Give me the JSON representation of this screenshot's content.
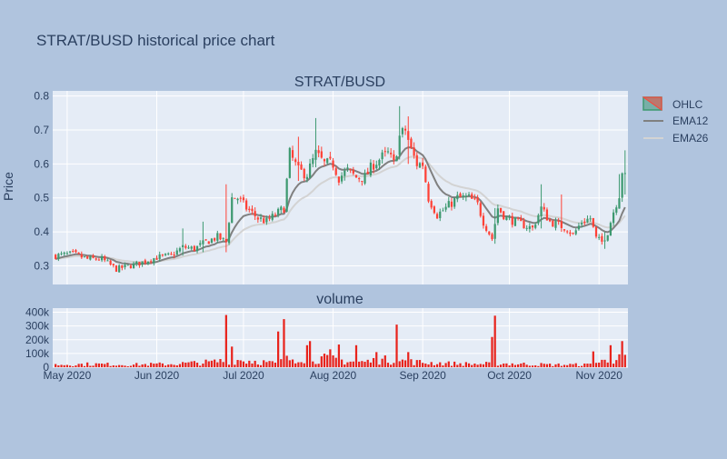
{
  "colors": {
    "background": "#b0c4de",
    "plot_bg": "#e5ecf6",
    "grid": "#ffffff",
    "text": "#2a3f5f",
    "up": "#3d9970",
    "down": "#ff4136",
    "ema12": "#808080",
    "ema26": "#d3d3d3",
    "volume": "#e8231c"
  },
  "title": "STRAT/BUSD historical price chart",
  "chart_data": [
    {
      "type": "candlestick",
      "subtitle": "STRAT/BUSD",
      "ylabel": "Price",
      "ylim": [
        0.245,
        0.815
      ],
      "yticks": [
        "0.3",
        "0.4",
        "0.5",
        "0.6",
        "0.7",
        "0.8"
      ],
      "ytick_values": [
        0.3,
        0.4,
        0.5,
        0.6,
        0.7,
        0.8
      ],
      "xlim": [
        "2020-04-26",
        "2020-11-11"
      ],
      "legend": {
        "placement": "top-right",
        "entries": [
          "OHLC",
          "EMA12",
          "EMA26"
        ]
      },
      "grid": true,
      "close_anchors": [
        [
          "2020-04-27",
          0.33
        ],
        [
          "2020-05-03",
          0.335
        ],
        [
          "2020-05-08",
          0.32
        ],
        [
          "2020-05-13",
          0.32
        ],
        [
          "2020-05-18",
          0.29
        ],
        [
          "2020-05-25",
          0.305
        ],
        [
          "2020-06-01",
          0.325
        ],
        [
          "2020-06-06",
          0.33
        ],
        [
          "2020-06-10",
          0.355
        ],
        [
          "2020-06-14",
          0.35
        ],
        [
          "2020-06-18",
          0.37
        ],
        [
          "2020-06-22",
          0.385
        ],
        [
          "2020-06-25",
          0.37
        ],
        [
          "2020-06-27",
          0.5
        ],
        [
          "2020-06-29",
          0.5
        ],
        [
          "2020-07-02",
          0.47
        ],
        [
          "2020-07-06",
          0.44
        ],
        [
          "2020-07-09",
          0.43
        ],
        [
          "2020-07-12",
          0.45
        ],
        [
          "2020-07-15",
          0.47
        ],
        [
          "2020-07-17",
          0.63
        ],
        [
          "2020-07-20",
          0.58
        ],
        [
          "2020-07-23",
          0.57
        ],
        [
          "2020-07-26",
          0.63
        ],
        [
          "2020-07-29",
          0.6
        ],
        [
          "2020-08-01",
          0.6
        ],
        [
          "2020-08-03",
          0.56
        ],
        [
          "2020-08-06",
          0.58
        ],
        [
          "2020-08-09",
          0.56
        ],
        [
          "2020-08-12",
          0.56
        ],
        [
          "2020-08-15",
          0.6
        ],
        [
          "2020-08-18",
          0.62
        ],
        [
          "2020-08-20",
          0.63
        ],
        [
          "2020-08-22",
          0.6
        ],
        [
          "2020-08-24",
          0.68
        ],
        [
          "2020-08-26",
          0.7
        ],
        [
          "2020-08-28",
          0.64
        ],
        [
          "2020-08-30",
          0.6
        ],
        [
          "2020-09-01",
          0.6
        ],
        [
          "2020-09-03",
          0.5
        ],
        [
          "2020-09-06",
          0.45
        ],
        [
          "2020-09-09",
          0.47
        ],
        [
          "2020-09-13",
          0.5
        ],
        [
          "2020-09-17",
          0.5
        ],
        [
          "2020-09-20",
          0.48
        ],
        [
          "2020-09-22",
          0.43
        ],
        [
          "2020-09-25",
          0.38
        ],
        [
          "2020-09-27",
          0.47
        ],
        [
          "2020-09-30",
          0.44
        ],
        [
          "2020-10-03",
          0.43
        ],
        [
          "2020-10-06",
          0.42
        ],
        [
          "2020-10-09",
          0.41
        ],
        [
          "2020-10-12",
          0.47
        ],
        [
          "2020-10-15",
          0.43
        ],
        [
          "2020-10-18",
          0.42
        ],
        [
          "2020-10-21",
          0.41
        ],
        [
          "2020-10-23",
          0.39
        ],
        [
          "2020-10-26",
          0.43
        ],
        [
          "2020-10-29",
          0.44
        ],
        [
          "2020-10-31",
          0.38
        ],
        [
          "2020-11-02",
          0.37
        ],
        [
          "2020-11-04",
          0.4
        ],
        [
          "2020-11-06",
          0.46
        ],
        [
          "2020-11-08",
          0.51
        ],
        [
          "2020-11-09",
          0.58
        ],
        [
          "2020-11-10",
          0.56
        ]
      ],
      "spikes": [
        [
          "2020-06-10",
          0.41,
          0.33
        ],
        [
          "2020-06-17",
          0.43,
          0.34
        ],
        [
          "2020-06-25",
          0.54,
          0.34
        ],
        [
          "2020-07-20",
          0.68,
          0.55
        ],
        [
          "2020-07-26",
          0.735,
          0.59
        ],
        [
          "2020-08-24",
          0.77,
          0.63
        ],
        [
          "2020-08-27",
          0.74,
          0.6
        ],
        [
          "2020-09-26",
          0.47,
          0.365
        ],
        [
          "2020-10-12",
          0.54,
          0.41
        ],
        [
          "2020-10-19",
          0.51,
          0.4
        ],
        [
          "2020-11-03",
          0.4,
          0.35
        ],
        [
          "2020-11-08",
          0.57,
          0.47
        ],
        [
          "2020-11-10",
          0.64,
          0.51
        ]
      ]
    },
    {
      "type": "bar",
      "subtitle": "volume",
      "ylim": [
        0,
        430000
      ],
      "yticks": [
        "0",
        "100k",
        "200k",
        "300k",
        "400k"
      ],
      "ytick_values": [
        0,
        100000,
        200000,
        300000,
        400000
      ],
      "xticks": [
        "May 2020",
        "Jun 2020",
        "Jul 2020",
        "Aug 2020",
        "Sep 2020",
        "Oct 2020",
        "Nov 2020"
      ],
      "xtick_dates": [
        "2020-05-01",
        "2020-06-01",
        "2020-07-01",
        "2020-08-01",
        "2020-09-01",
        "2020-10-01",
        "2020-11-01"
      ],
      "baseline": [
        [
          "2020-04-27",
          20000
        ],
        [
          "2020-05-10",
          25000
        ],
        [
          "2020-05-22",
          20000
        ],
        [
          "2020-06-05",
          25000
        ],
        [
          "2020-06-20",
          40000
        ],
        [
          "2020-06-27",
          60000
        ],
        [
          "2020-07-05",
          50000
        ],
        [
          "2020-07-12",
          30000
        ],
        [
          "2020-07-20",
          90000
        ],
        [
          "2020-08-01",
          60000
        ],
        [
          "2020-08-10",
          40000
        ],
        [
          "2020-08-20",
          60000
        ],
        [
          "2020-08-30",
          40000
        ],
        [
          "2020-09-10",
          30000
        ],
        [
          "2020-09-20",
          25000
        ],
        [
          "2020-09-28",
          30000
        ],
        [
          "2020-10-15",
          20000
        ],
        [
          "2020-10-28",
          20000
        ],
        [
          "2020-11-05",
          60000
        ],
        [
          "2020-11-10",
          70000
        ]
      ],
      "spikes": [
        [
          "2020-06-25",
          380000
        ],
        [
          "2020-06-27",
          150000
        ],
        [
          "2020-07-13",
          260000
        ],
        [
          "2020-07-15",
          350000
        ],
        [
          "2020-07-23",
          160000
        ],
        [
          "2020-07-24",
          190000
        ],
        [
          "2020-07-31",
          130000
        ],
        [
          "2020-08-03",
          165000
        ],
        [
          "2020-08-09",
          160000
        ],
        [
          "2020-08-16",
          110000
        ],
        [
          "2020-08-23",
          310000
        ],
        [
          "2020-08-27",
          110000
        ],
        [
          "2020-09-25",
          220000
        ],
        [
          "2020-09-26",
          375000
        ],
        [
          "2020-10-30",
          115000
        ],
        [
          "2020-11-05",
          160000
        ],
        [
          "2020-11-09",
          190000
        ]
      ]
    }
  ]
}
